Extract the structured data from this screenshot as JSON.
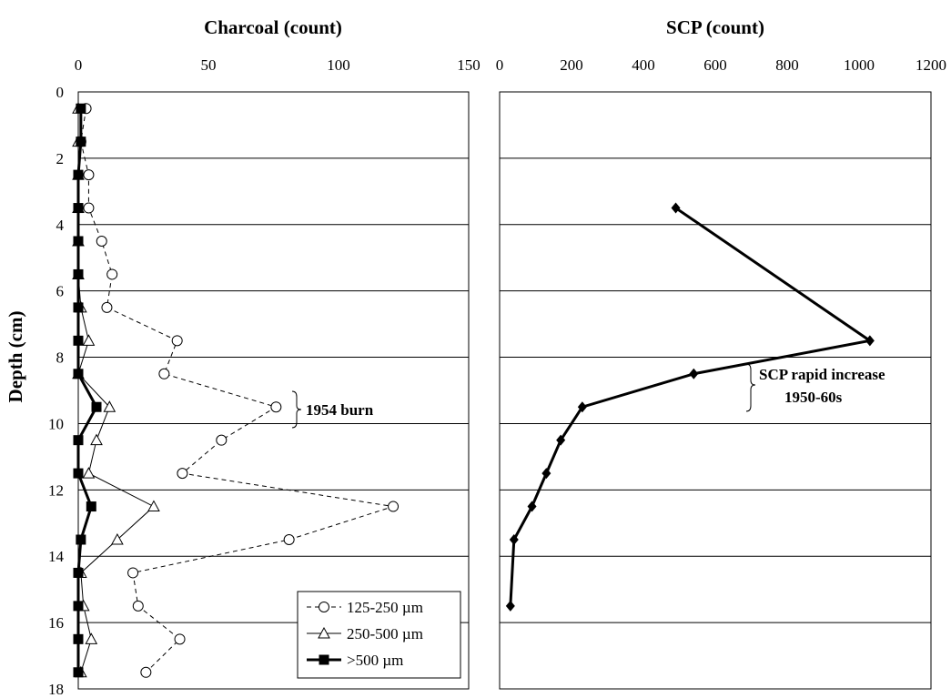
{
  "chart_data": [
    {
      "type": "line",
      "title": "Charcoal (count)",
      "ylabel": "Depth (cm)",
      "xlim": [
        0,
        150
      ],
      "ylim": [
        0,
        18
      ],
      "y_inverted": true,
      "x_ticks": [
        "0",
        "50",
        "100",
        "150"
      ],
      "y_ticks": [
        "0",
        "2",
        "4",
        "6",
        "8",
        "10",
        "12",
        "14",
        "16",
        "18"
      ],
      "grid": "horizontal",
      "legend": "bottom-right",
      "series": [
        {
          "name": "125-250 µm",
          "style": "dashed-open-circle",
          "color": "#000000",
          "x": [
            3,
            1,
            4,
            4,
            9,
            13,
            11,
            38,
            33,
            76,
            55,
            40,
            121,
            81,
            21,
            23,
            39,
            26
          ],
          "y": [
            0.5,
            1.5,
            2.5,
            3.5,
            4.5,
            5.5,
            6.5,
            7.5,
            8.5,
            9.5,
            10.5,
            11.5,
            12.5,
            13.5,
            14.5,
            15.5,
            16.5,
            17.5
          ]
        },
        {
          "name": "250-500 µm",
          "style": "thin-open-triangle",
          "color": "#000000",
          "x": [
            0,
            0,
            0,
            0,
            0,
            0,
            1,
            4,
            0,
            12,
            7,
            4,
            29,
            15,
            1,
            2,
            5,
            1
          ],
          "y": [
            0.5,
            1.5,
            2.5,
            3.5,
            4.5,
            5.5,
            6.5,
            7.5,
            8.5,
            9.5,
            10.5,
            11.5,
            12.5,
            13.5,
            14.5,
            15.5,
            16.5,
            17.5
          ]
        },
        {
          "name": ">500 µm",
          "style": "thick-filled-square",
          "color": "#000000",
          "x": [
            1,
            1,
            0,
            0,
            0,
            0,
            0,
            0,
            0,
            7,
            0,
            0,
            5,
            1,
            0,
            0,
            0,
            0
          ],
          "y": [
            0.5,
            1.5,
            2.5,
            3.5,
            4.5,
            5.5,
            6.5,
            7.5,
            8.5,
            9.5,
            10.5,
            11.5,
            12.5,
            13.5,
            14.5,
            15.5,
            16.5,
            17.5
          ]
        }
      ],
      "annotations": [
        {
          "text": "1954 burn",
          "x": 83,
          "y": 9.5
        }
      ]
    },
    {
      "type": "line",
      "title": "SCP (count)",
      "xlim": [
        0,
        1200
      ],
      "ylim": [
        0,
        18
      ],
      "y_inverted": true,
      "x_ticks": [
        "0",
        "200",
        "400",
        "600",
        "800",
        "1000",
        "1200"
      ],
      "grid": "horizontal",
      "series": [
        {
          "style": "thick-filled-diamond",
          "color": "#000000",
          "x": [
            490,
            1030,
            540,
            230,
            170,
            130,
            90,
            40,
            30
          ],
          "y": [
            3.5,
            7.5,
            8.5,
            9.5,
            10.5,
            11.5,
            12.5,
            13.5,
            15.5
          ]
        }
      ],
      "annotations": [
        {
          "text": "SCP rapid increase",
          "x": 755,
          "y": 9.0
        },
        {
          "text": "1950-60s",
          "x": 755,
          "y": 9.75
        }
      ]
    }
  ]
}
